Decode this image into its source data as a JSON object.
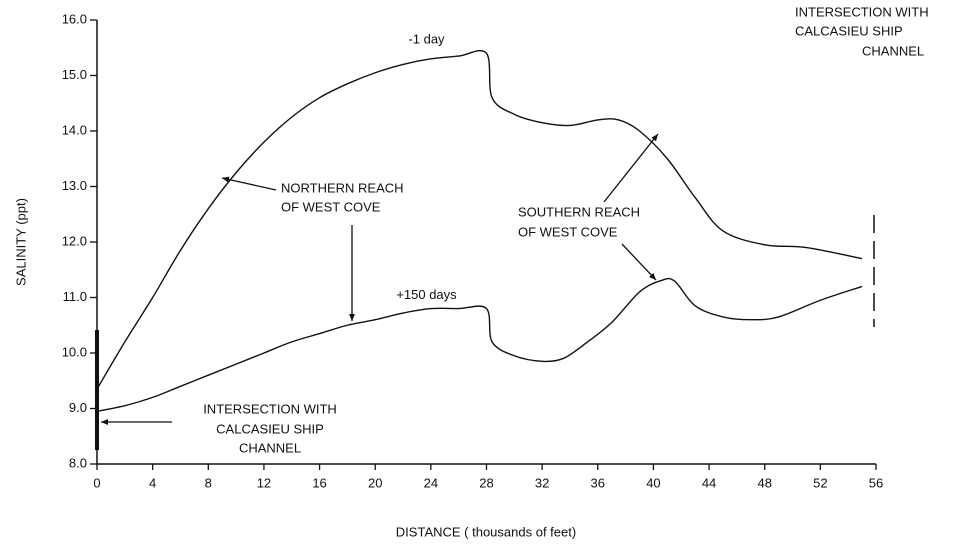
{
  "chart_data": {
    "type": "line",
    "xlabel": "DISTANCE ( thousands of feet)",
    "ylabel": "SALINITY (ppt)",
    "xlim": [
      0,
      56
    ],
    "xticks": [
      0,
      4,
      8,
      12,
      16,
      20,
      24,
      28,
      32,
      36,
      40,
      44,
      48,
      52,
      56
    ],
    "ylim": [
      8,
      16
    ],
    "yticks": [
      {
        "value": 8,
        "label": "8.0"
      },
      {
        "value": 9,
        "label": "9.0"
      },
      {
        "value": 10,
        "label": "10.0"
      },
      {
        "value": 11,
        "label": "11.0"
      },
      {
        "value": 12,
        "label": "12.0"
      },
      {
        "value": 13,
        "label": "13.0"
      },
      {
        "value": 14,
        "label": "14.0"
      },
      {
        "value": 15,
        "label": "15.0"
      },
      {
        "value": 16,
        "label": "16.0"
      }
    ],
    "grid": false,
    "series": [
      {
        "name": "-1 day",
        "color": "#111111",
        "x": [
          0,
          2,
          4,
          6,
          8,
          10,
          12,
          14,
          16,
          18,
          20,
          22,
          24,
          26,
          28,
          28.4,
          30,
          32,
          34,
          36,
          37.5,
          39,
          41,
          43,
          45,
          48,
          51,
          55
        ],
        "values": [
          9.35,
          10.2,
          11.0,
          11.85,
          12.6,
          13.25,
          13.8,
          14.25,
          14.6,
          14.85,
          15.05,
          15.2,
          15.3,
          15.35,
          15.4,
          14.6,
          14.3,
          14.15,
          14.1,
          14.2,
          14.2,
          14.0,
          13.5,
          12.8,
          12.2,
          11.95,
          11.9,
          11.7
        ]
      },
      {
        "name": "+150 days",
        "color": "#111111",
        "x": [
          0,
          2,
          4,
          6,
          8,
          10,
          12,
          14,
          16,
          18,
          20,
          22,
          24,
          26,
          28,
          28.4,
          30,
          32,
          33.5,
          35,
          37,
          39,
          40.5,
          41.5,
          43,
          45,
          47,
          49,
          52,
          55
        ],
        "values": [
          8.95,
          9.05,
          9.2,
          9.4,
          9.6,
          9.8,
          10.0,
          10.2,
          10.35,
          10.5,
          10.6,
          10.72,
          10.8,
          10.8,
          10.8,
          10.2,
          9.95,
          9.85,
          9.9,
          10.15,
          10.55,
          11.1,
          11.3,
          11.3,
          10.85,
          10.65,
          10.6,
          10.65,
          10.95,
          11.2
        ]
      }
    ],
    "annotations": [
      {
        "lines": [
          "NORTHERN REACH",
          "OF WEST COVE"
        ]
      },
      {
        "lines": [
          "SOUTHERN REACH",
          "OF WEST COVE"
        ]
      },
      {
        "lines": [
          "INTERSECTION WITH",
          "CALCASIEU SHIP",
          "CHANNEL"
        ]
      },
      {
        "lines": [
          "INTERSECTION WITH",
          "CALCASIEU SHIP",
          "CHANNEL"
        ]
      }
    ]
  }
}
